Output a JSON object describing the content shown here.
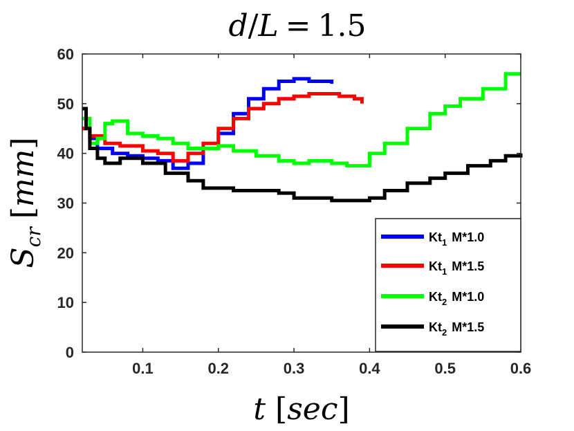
{
  "chart_data": {
    "type": "line",
    "title": "d/L = 1.5",
    "title_parts": {
      "var1": "d",
      "slash": "/",
      "var2": "L",
      "eq": "=",
      "num": "1.5"
    },
    "xlabel": "t [sec]",
    "xlabel_parts": {
      "var": "t",
      "open": "[",
      "unit": "sec",
      "close": "]"
    },
    "ylabel": "S_cr [mm]",
    "ylabel_parts": {
      "var": "S",
      "sub": "cr",
      "open": "[",
      "unit": "mm",
      "close": "]"
    },
    "xlim": [
      0.02,
      0.6
    ],
    "ylim": [
      0,
      60
    ],
    "xticks": [
      0.1,
      0.2,
      0.3,
      0.4,
      0.5,
      0.6
    ],
    "xtick_labels": [
      "0.1",
      "0.2",
      "0.3",
      "0.4",
      "0.5",
      "0.6"
    ],
    "yticks": [
      0,
      10,
      20,
      30,
      40,
      50,
      60
    ],
    "ytick_labels": [
      "0",
      "10",
      "20",
      "30",
      "40",
      "50",
      "60"
    ],
    "grid": false,
    "legend_position": "bottom-right",
    "series": [
      {
        "name": "Kt1 M*1.0",
        "label_main": "Kt",
        "label_sub": "1",
        "label_rest": " M*1.0",
        "color": "#0000ff",
        "x": [
          0.02,
          0.03,
          0.04,
          0.06,
          0.08,
          0.1,
          0.12,
          0.14,
          0.16,
          0.18,
          0.2,
          0.22,
          0.24,
          0.26,
          0.28,
          0.3,
          0.32,
          0.35
        ],
        "y": [
          45,
          43,
          41,
          40,
          39.5,
          39,
          38.5,
          37,
          38,
          41,
          44,
          48,
          51,
          53,
          54.5,
          55,
          54.5,
          54
        ]
      },
      {
        "name": "Kt1 M*1.5",
        "label_main": "Kt",
        "label_sub": "1",
        "label_rest": " M*1.5",
        "color": "#ff0000",
        "x": [
          0.02,
          0.03,
          0.05,
          0.07,
          0.1,
          0.12,
          0.14,
          0.16,
          0.18,
          0.2,
          0.22,
          0.24,
          0.26,
          0.28,
          0.3,
          0.32,
          0.34,
          0.36,
          0.38,
          0.39
        ],
        "y": [
          45,
          43.5,
          42,
          41.5,
          40.5,
          40,
          38.5,
          40,
          42,
          45,
          47,
          49,
          50,
          51,
          51.5,
          52,
          52,
          51.5,
          51,
          50
        ]
      },
      {
        "name": "Kt2 M*1.0",
        "label_main": "Kt",
        "label_sub": "2",
        "label_rest": " M*1.0",
        "color": "#00ff00",
        "x": [
          0.02,
          0.03,
          0.04,
          0.05,
          0.06,
          0.08,
          0.1,
          0.12,
          0.14,
          0.16,
          0.18,
          0.2,
          0.22,
          0.25,
          0.28,
          0.3,
          0.32,
          0.35,
          0.37,
          0.4,
          0.42,
          0.45,
          0.48,
          0.5,
          0.52,
          0.55,
          0.58,
          0.6
        ],
        "y": [
          47,
          42,
          43,
          46,
          46.5,
          44,
          43.5,
          43,
          42,
          41,
          41,
          41.5,
          40.5,
          39.5,
          38.5,
          38,
          38.5,
          38,
          37.5,
          40,
          42,
          45,
          48,
          49.5,
          51,
          53,
          56,
          56
        ]
      },
      {
        "name": "Kt2 M*1.5",
        "label_main": "Kt",
        "label_sub": "2",
        "label_rest": " M*1.5",
        "color": "#000000",
        "x": [
          0.02,
          0.025,
          0.03,
          0.04,
          0.05,
          0.07,
          0.1,
          0.13,
          0.16,
          0.18,
          0.2,
          0.22,
          0.25,
          0.28,
          0.3,
          0.33,
          0.35,
          0.38,
          0.4,
          0.42,
          0.45,
          0.48,
          0.5,
          0.53,
          0.56,
          0.58,
          0.6
        ],
        "y": [
          49,
          45,
          41,
          39,
          38,
          39,
          38,
          36,
          34.5,
          33,
          33,
          32.5,
          32.5,
          32,
          31,
          31,
          30.5,
          30.5,
          31,
          32.5,
          34,
          35,
          36,
          37.5,
          38.5,
          39.5,
          40
        ]
      }
    ]
  }
}
